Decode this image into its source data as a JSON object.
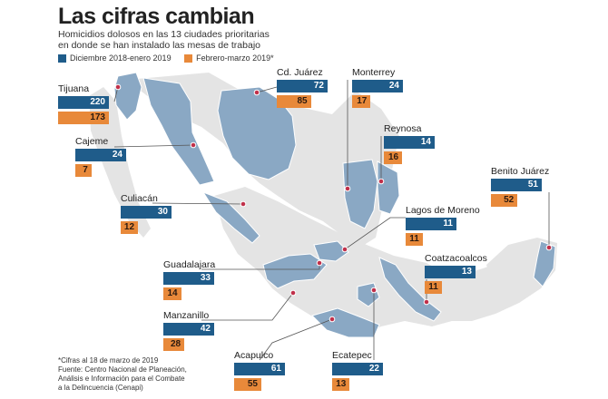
{
  "title": "Las cifras cambian",
  "subtitle_lines": [
    "Homicidios dolosos en las 13 ciudades prioritarias",
    "en donde se han instalado las mesas de trabajo"
  ],
  "colors": {
    "series1": "#1f5c8a",
    "series2": "#e8893a",
    "highlight": "#8aa8c4",
    "land": "#e4e4e4",
    "marker": "#c0304a"
  },
  "footnote_lines": [
    "*Cifras al 18 de marzo de 2019",
    "Fuente: Centro Nacional de Planeación,",
    "Análisis e Información para el Combate",
    "a la Delincuencia (Cenapi)"
  ],
  "chart_data": {
    "type": "bar",
    "title": "Las cifras cambian",
    "categories": [
      "Tijuana",
      "Cajeme",
      "Culiacán",
      "Guadalajara",
      "Manzanillo",
      "Acapulco",
      "Ecatepec",
      "Cd. Juárez",
      "Monterrey",
      "Reynosa",
      "Lagos de Moreno",
      "Coatzacoalcos",
      "Benito Juárez"
    ],
    "series": [
      {
        "name": "Diciembre 2018-enero 2019",
        "values": [
          220,
          24,
          30,
          33,
          42,
          61,
          22,
          72,
          24,
          14,
          11,
          13,
          51
        ]
      },
      {
        "name": "Febrero-marzo 2019*",
        "values": [
          173,
          7,
          12,
          14,
          28,
          55,
          13,
          85,
          17,
          16,
          11,
          11,
          52
        ]
      }
    ],
    "legend": "top-left"
  }
}
